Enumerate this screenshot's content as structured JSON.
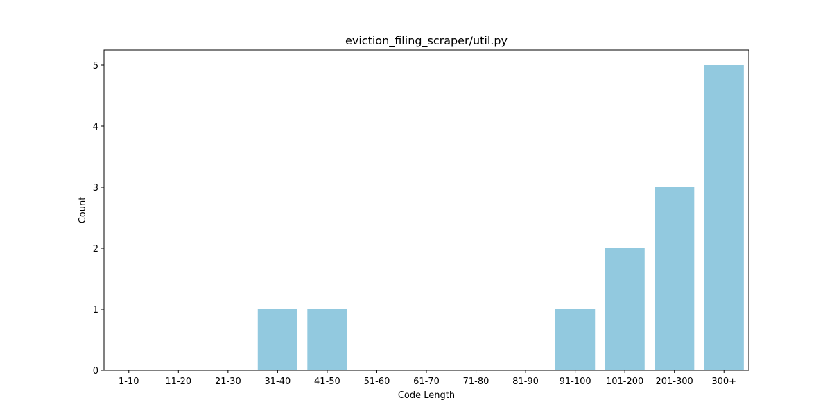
{
  "chart_data": {
    "type": "bar",
    "title": "eviction_filing_scraper/util.py",
    "xlabel": "Code Length",
    "ylabel": "Count",
    "categories": [
      "1-10",
      "11-20",
      "21-30",
      "31-40",
      "41-50",
      "51-60",
      "61-70",
      "71-80",
      "81-90",
      "91-100",
      "101-200",
      "201-300",
      "300+"
    ],
    "values": [
      0,
      0,
      0,
      1,
      1,
      0,
      0,
      0,
      0,
      1,
      2,
      3,
      5
    ],
    "ylim": [
      0,
      5.25
    ],
    "yticks": [
      0,
      1,
      2,
      3,
      4,
      5
    ],
    "grid": false,
    "bar_color": "#92c9df"
  }
}
